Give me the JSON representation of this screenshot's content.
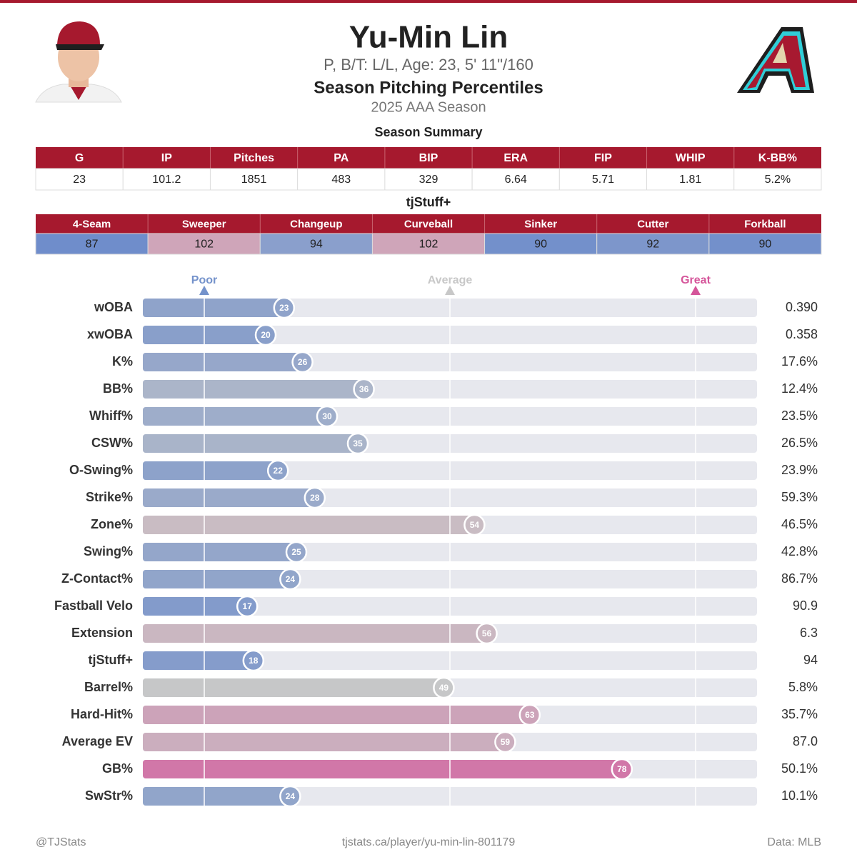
{
  "header": {
    "title": "Yu-Min Lin",
    "subtitle": "P, B/T: L/L, Age: 23, 5' 11\"/160",
    "heading": "Season Pitching Percentiles",
    "season": "2025 AAA Season"
  },
  "summary": {
    "title": "Season Summary",
    "headers": [
      "G",
      "IP",
      "Pitches",
      "PA",
      "BIP",
      "ERA",
      "FIP",
      "WHIP",
      "K-BB%"
    ],
    "rows": [
      [
        23,
        101.2,
        1851,
        483,
        329,
        6.64,
        5.71,
        1.81,
        "5.2%"
      ]
    ]
  },
  "stuff": {
    "title": "tjStuff+",
    "headers": [
      "4-Seam",
      "Sweeper",
      "Changeup",
      "Curveball",
      "Sinker",
      "Cutter",
      "Forkball"
    ],
    "rows": [
      [
        87,
        102,
        94,
        102,
        90,
        92,
        90
      ]
    ],
    "cell_colors": [
      "#6f8dcb",
      "#cfa5b9",
      "#8a9fcc",
      "#cfa5b9",
      "#7390cb",
      "#7d96cb",
      "#7390cb"
    ]
  },
  "chart_data": {
    "type": "bar",
    "orientation": "horizontal",
    "categories": [
      "wOBA",
      "xwOBA",
      "K%",
      "BB%",
      "Whiff%",
      "CSW%",
      "O-Swing%",
      "Strike%",
      "Zone%",
      "Swing%",
      "Z-Contact%",
      "Fastball Velo",
      "Extension",
      "tjStuff+",
      "Barrel%",
      "Hard-Hit%",
      "Average EV",
      "GB%",
      "SwStr%"
    ],
    "values": [
      23,
      20,
      26,
      36,
      30,
      35,
      22,
      28,
      54,
      25,
      24,
      17,
      56,
      18,
      49,
      63,
      59,
      78,
      24
    ],
    "stats": [
      "0.390",
      "0.358",
      "17.6%",
      "12.4%",
      "23.5%",
      "26.5%",
      "23.9%",
      "59.3%",
      "46.5%",
      "42.8%",
      "86.7%",
      "90.9",
      "6.3",
      "94",
      "5.8%",
      "35.7%",
      "87.0",
      "50.1%",
      "10.1%"
    ],
    "xlim": [
      0,
      100
    ],
    "xticks": [
      {
        "value": 10,
        "label": "Poor"
      },
      {
        "value": 50,
        "label": "Average"
      },
      {
        "value": 90,
        "label": "Great"
      }
    ],
    "colormap": [
      "#5f84cc",
      "#c8c8c8",
      "#d8388e"
    ]
  },
  "footer": {
    "left": "@TJStats",
    "center": "tjstats.ca/player/yu-min-lin-801179",
    "right": "Data: MLB"
  }
}
